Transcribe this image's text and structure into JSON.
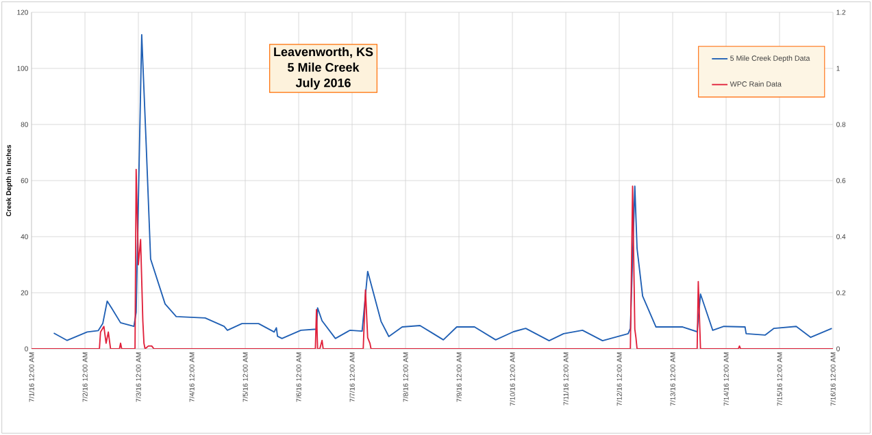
{
  "chart_data": {
    "type": "line",
    "title": "Leavenworth, KS",
    "subtitle": "5 Mile Creek",
    "annotations": [
      "July 2016"
    ],
    "ylabel": "Creek Depth in Inches",
    "xlim": [
      "2016-07-01T00:00",
      "2016-07-16T00:00"
    ],
    "xticks": [
      {
        "value": "2016-07-01T00:00",
        "label": "7/1/16 12:00 AM"
      },
      {
        "value": "2016-07-02T00:00",
        "label": "7/2/16 12:00 AM"
      },
      {
        "value": "2016-07-03T00:00",
        "label": "7/3/16 12:00 AM"
      },
      {
        "value": "2016-07-04T00:00",
        "label": "7/4/16 12:00 AM"
      },
      {
        "value": "2016-07-05T00:00",
        "label": "7/5/16 12:00 AM"
      },
      {
        "value": "2016-07-06T00:00",
        "label": "7/6/16 12:00 AM"
      },
      {
        "value": "2016-07-07T00:00",
        "label": "7/7/16 12:00 AM"
      },
      {
        "value": "2016-07-08T00:00",
        "label": "7/8/16 12:00 AM"
      },
      {
        "value": "2016-07-09T00:00",
        "label": "7/9/16 12:00 AM"
      },
      {
        "value": "2016-07-10T00:00",
        "label": "7/10/16 12:00 AM"
      },
      {
        "value": "2016-07-11T00:00",
        "label": "7/11/16 12:00 AM"
      },
      {
        "value": "2016-07-12T00:00",
        "label": "7/12/16 12:00 AM"
      },
      {
        "value": "2016-07-13T00:00",
        "label": "7/13/16 12:00 AM"
      },
      {
        "value": "2016-07-14T00:00",
        "label": "7/14/16 12:00 AM"
      },
      {
        "value": "2016-07-15T00:00",
        "label": "7/15/16 12:00 AM"
      },
      {
        "value": "2016-07-16T00:00",
        "label": "7/16/16 12:00 AM"
      }
    ],
    "ylim": [
      0,
      120
    ],
    "yticks": [
      0,
      20,
      40,
      60,
      80,
      100,
      120
    ],
    "y2lim": [
      0,
      1.2
    ],
    "y2ticks": [
      0,
      0.2,
      0.4,
      0.6,
      0.8,
      1,
      1.2
    ],
    "grid": true,
    "legend": "top right",
    "marker": "none",
    "line_style": "solid",
    "series": [
      {
        "name": "5 Mile Creek Depth Data",
        "color": "#1f5fb4",
        "axis": "y",
        "x": [
          "2016-07-01T10:00",
          "2016-07-01T16:00",
          "2016-07-02T01:00",
          "2016-07-02T06:00",
          "2016-07-02T08:00",
          "2016-07-02T10:00",
          "2016-07-02T12:00",
          "2016-07-02T16:00",
          "2016-07-02T22:00",
          "2016-07-02T23:00",
          "2016-07-03T01:30",
          "2016-07-03T03:30",
          "2016-07-03T05:30",
          "2016-07-03T12:00",
          "2016-07-03T17:00",
          "2016-07-04T06:00",
          "2016-07-04T14:30",
          "2016-07-04T16:00",
          "2016-07-04T22:30",
          "2016-07-05T06:00",
          "2016-07-05T13:00",
          "2016-07-05T14:00",
          "2016-07-05T14:30",
          "2016-07-05T16:30",
          "2016-07-06T01:00",
          "2016-07-06T08:00",
          "2016-07-06T08:30",
          "2016-07-06T10:30",
          "2016-07-06T16:30",
          "2016-07-06T23:00",
          "2016-07-07T04:30",
          "2016-07-07T07:00",
          "2016-07-07T13:00",
          "2016-07-07T16:30",
          "2016-07-07T22:30",
          "2016-07-08T06:30",
          "2016-07-08T12:30",
          "2016-07-08T17:00",
          "2016-07-08T23:00",
          "2016-07-09T07:00",
          "2016-07-09T16:30",
          "2016-07-10T00:30",
          "2016-07-10T06:00",
          "2016-07-10T16:30",
          "2016-07-10T23:00",
          "2016-07-11T07:30",
          "2016-07-11T16:30",
          "2016-07-12T04:00",
          "2016-07-12T05:00",
          "2016-07-12T07:00",
          "2016-07-12T08:00",
          "2016-07-12T10:30",
          "2016-07-12T16:30",
          "2016-07-13T04:30",
          "2016-07-13T11:00",
          "2016-07-13T12:30",
          "2016-07-13T18:00",
          "2016-07-13T23:00",
          "2016-07-14T08:30",
          "2016-07-14T09:00",
          "2016-07-14T17:30",
          "2016-07-14T21:30",
          "2016-07-15T07:30",
          "2016-07-15T14:00",
          "2016-07-15T23:30"
        ],
        "values": [
          5.6,
          3,
          6,
          6.5,
          9,
          17,
          14.5,
          9.3,
          8,
          13,
          112,
          73,
          32,
          16,
          11.5,
          11,
          8,
          6.6,
          9,
          9,
          6,
          7.5,
          4.5,
          3.7,
          6.6,
          7,
          14.6,
          10,
          3.7,
          6.6,
          6.3,
          27.6,
          9.8,
          4.4,
          7.8,
          8.3,
          5.4,
          3.2,
          7.8,
          7.8,
          3.2,
          6.1,
          7.3,
          2.9,
          5.4,
          6.6,
          2.9,
          5.4,
          7.3,
          58,
          35.8,
          18.8,
          7.8,
          7.8,
          6.1,
          19.5,
          6.6,
          8,
          7.8,
          5.4,
          4.9,
          7.3,
          8,
          4.1,
          7.3
        ]
      },
      {
        "name": "WPC Rain Data",
        "color": "#e0203a",
        "axis": "y2",
        "x": [
          "2016-07-01T00:00",
          "2016-07-02T06:30",
          "2016-07-02T07:00",
          "2016-07-02T08:30",
          "2016-07-02T09:30",
          "2016-07-02T10:30",
          "2016-07-02T11:30",
          "2016-07-02T15:30",
          "2016-07-02T16:00",
          "2016-07-02T16:30",
          "2016-07-02T22:30",
          "2016-07-02T23:00",
          "2016-07-03T00:00",
          "2016-07-03T01:00",
          "2016-07-03T02:00",
          "2016-07-03T02:30",
          "2016-07-03T03:00",
          "2016-07-03T04:30",
          "2016-07-03T06:00",
          "2016-07-03T07:00",
          "2016-07-06T07:30",
          "2016-07-06T08:00",
          "2016-07-06T08:30",
          "2016-07-06T09:30",
          "2016-07-06T10:30",
          "2016-07-06T11:00",
          "2016-07-07T05:00",
          "2016-07-07T06:00",
          "2016-07-07T07:00",
          "2016-07-07T08:00",
          "2016-07-07T08:30",
          "2016-07-12T05:00",
          "2016-07-12T06:00",
          "2016-07-12T07:00",
          "2016-07-12T07:30",
          "2016-07-12T08:00",
          "2016-07-13T11:00",
          "2016-07-13T11:30",
          "2016-07-13T12:30",
          "2016-07-14T05:30",
          "2016-07-14T06:00",
          "2016-07-14T06:30",
          "2016-07-16T00:00"
        ],
        "values": [
          0,
          0,
          0.06,
          0.08,
          0.02,
          0.06,
          0,
          0,
          0.02,
          0,
          0,
          0.64,
          0.3,
          0.39,
          0.1,
          0.02,
          0,
          0.01,
          0.01,
          0,
          0,
          0.14,
          0,
          0,
          0.03,
          0,
          0,
          0.21,
          0.04,
          0.02,
          0,
          0,
          0.58,
          0.07,
          0.04,
          0,
          0,
          0.24,
          0,
          0,
          0.01,
          0,
          0
        ]
      }
    ]
  }
}
